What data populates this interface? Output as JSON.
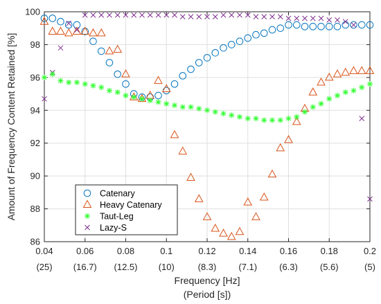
{
  "chart_data": {
    "type": "scatter",
    "xlabel": "Frequency [Hz]",
    "xlabel2": "(Period [s])",
    "ylabel": "Amount of Frequency Content Retained [%]",
    "xlim": [
      0.04,
      0.2
    ],
    "ylim": [
      86,
      100
    ],
    "grid": true,
    "legend_position": "bottom-left",
    "x_ticks": [
      0.04,
      0.06,
      0.08,
      0.1,
      0.12,
      0.14,
      0.16,
      0.18,
      0.2
    ],
    "x_tick_labels": [
      "0.04",
      "0.06",
      "0.08",
      "0.1",
      "0.12",
      "0.14",
      "0.16",
      "0.18",
      "0.2"
    ],
    "x_tick_periods": [
      "(25)",
      "(16.7)",
      "(12.5)",
      "(10)",
      "(8.3)",
      "(7.1)",
      "(6.3)",
      "(5.6)",
      "(5)"
    ],
    "y_ticks": [
      86,
      88,
      90,
      92,
      94,
      96,
      98,
      100
    ],
    "y_tick_labels": [
      "86",
      "88",
      "90",
      "92",
      "94",
      "96",
      "98",
      "100"
    ],
    "series": [
      {
        "name": "Catenary",
        "marker": "circle",
        "color": "#0072BD",
        "x": [
          0.04,
          0.044,
          0.048,
          0.052,
          0.056,
          0.06,
          0.064,
          0.068,
          0.072,
          0.076,
          0.08,
          0.084,
          0.088,
          0.092,
          0.096,
          0.1,
          0.104,
          0.108,
          0.112,
          0.116,
          0.12,
          0.124,
          0.128,
          0.132,
          0.136,
          0.14,
          0.144,
          0.148,
          0.152,
          0.156,
          0.16,
          0.164,
          0.168,
          0.172,
          0.176,
          0.18,
          0.184,
          0.188,
          0.192,
          0.196,
          0.2
        ],
        "y": [
          99.6,
          99.6,
          99.4,
          99.2,
          99.2,
          98.8,
          98.2,
          97.6,
          96.9,
          96.2,
          95.6,
          95.0,
          94.8,
          94.8,
          94.9,
          95.2,
          95.6,
          96.1,
          96.5,
          96.9,
          97.2,
          97.5,
          97.8,
          98.0,
          98.2,
          98.4,
          98.6,
          98.7,
          98.9,
          99.0,
          99.2,
          99.2,
          99.1,
          99.1,
          99.1,
          99.1,
          99.1,
          99.2,
          99.2,
          99.2,
          99.2
        ]
      },
      {
        "name": "Heavy Catenary",
        "marker": "triangle",
        "color": "#D95319",
        "x": [
          0.04,
          0.044,
          0.048,
          0.052,
          0.056,
          0.06,
          0.064,
          0.068,
          0.072,
          0.076,
          0.08,
          0.084,
          0.088,
          0.092,
          0.096,
          0.1,
          0.104,
          0.108,
          0.112,
          0.116,
          0.12,
          0.124,
          0.128,
          0.132,
          0.136,
          0.14,
          0.144,
          0.148,
          0.152,
          0.156,
          0.16,
          0.164,
          0.168,
          0.172,
          0.176,
          0.18,
          0.184,
          0.188,
          0.192,
          0.196,
          0.2
        ],
        "y": [
          99.4,
          98.8,
          98.8,
          98.7,
          98.8,
          98.8,
          98.7,
          98.7,
          97.6,
          97.7,
          96.2,
          94.8,
          94.7,
          94.9,
          95.8,
          95.3,
          92.5,
          91.5,
          89.9,
          88.6,
          87.5,
          86.8,
          86.5,
          86.3,
          86.6,
          88.4,
          87.5,
          88.7,
          90.1,
          91.7,
          92.2,
          93.3,
          94.1,
          95.1,
          95.7,
          96.0,
          96.2,
          96.3,
          96.4,
          96.4,
          96.4
        ]
      },
      {
        "name": "Taut-Leg",
        "marker": "asterisk",
        "color": "#33FF33",
        "x": [
          0.04,
          0.044,
          0.048,
          0.052,
          0.056,
          0.06,
          0.064,
          0.068,
          0.072,
          0.076,
          0.08,
          0.084,
          0.088,
          0.092,
          0.096,
          0.1,
          0.104,
          0.108,
          0.112,
          0.116,
          0.12,
          0.124,
          0.128,
          0.132,
          0.136,
          0.14,
          0.144,
          0.148,
          0.152,
          0.156,
          0.16,
          0.164,
          0.168,
          0.172,
          0.176,
          0.18,
          0.184,
          0.188,
          0.192,
          0.196,
          0.2
        ],
        "y": [
          96.0,
          96.2,
          95.8,
          95.7,
          95.7,
          95.6,
          95.5,
          95.4,
          95.2,
          95.1,
          94.9,
          94.8,
          94.7,
          94.6,
          94.5,
          94.4,
          94.3,
          94.2,
          94.2,
          94.1,
          94.0,
          93.9,
          93.8,
          93.7,
          93.6,
          93.5,
          93.5,
          93.4,
          93.4,
          93.4,
          93.5,
          93.6,
          93.9,
          94.2,
          94.4,
          94.7,
          94.9,
          95.1,
          95.2,
          95.4,
          95.6
        ]
      },
      {
        "name": "Lazy-S",
        "marker": "x",
        "color": "#7E2F8E",
        "x": [
          0.04,
          0.044,
          0.048,
          0.052,
          0.056,
          0.06,
          0.064,
          0.068,
          0.072,
          0.076,
          0.08,
          0.084,
          0.088,
          0.092,
          0.096,
          0.1,
          0.104,
          0.108,
          0.112,
          0.116,
          0.12,
          0.124,
          0.128,
          0.132,
          0.136,
          0.14,
          0.144,
          0.148,
          0.152,
          0.156,
          0.16,
          0.164,
          0.168,
          0.172,
          0.176,
          0.18,
          0.184,
          0.188,
          0.192,
          0.196,
          0.2
        ],
        "y": [
          94.7,
          96.3,
          97.8,
          99.3,
          98.9,
          99.8,
          99.8,
          99.8,
          99.8,
          99.8,
          99.8,
          99.8,
          99.8,
          99.8,
          99.8,
          99.8,
          99.8,
          99.7,
          99.7,
          99.7,
          99.7,
          99.7,
          99.8,
          99.8,
          99.8,
          99.8,
          99.7,
          99.7,
          99.7,
          99.7,
          99.6,
          99.6,
          99.6,
          99.6,
          99.6,
          99.5,
          99.5,
          99.4,
          99.2,
          93.5,
          88.6
        ]
      }
    ]
  }
}
